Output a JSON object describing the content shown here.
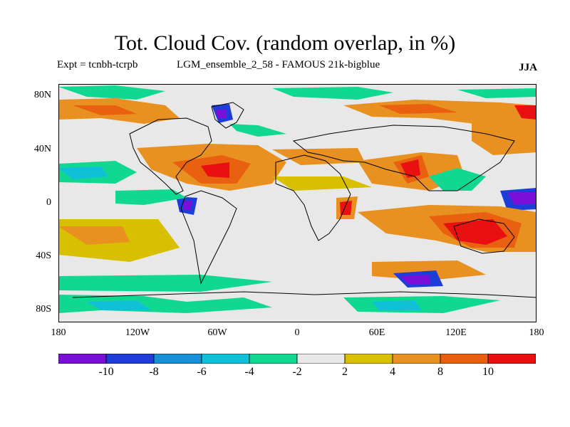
{
  "header": {
    "title": "Tot. Cloud Cov. (random overlap, in %)",
    "expt": "Expt = tcnbh-tcrpb",
    "run": "LGM_ensemble_2_58 - FAMOUS 21k-bigblue",
    "season": "JJA"
  },
  "map": {
    "lat_ticks": [
      "80N",
      "40N",
      "0",
      "40S",
      "80S"
    ],
    "lon_ticks": [
      "180",
      "120W",
      "60W",
      "0",
      "60E",
      "120E",
      "180"
    ]
  },
  "colorbar": {
    "labels": [
      "-10",
      "-8",
      "-6",
      "-4",
      "-2",
      "2",
      "4",
      "8",
      "10"
    ],
    "colors": [
      "#7a10d8",
      "#1e3cd8",
      "#1890d8",
      "#10c0d8",
      "#10d890",
      "#e8e8e8",
      "#d8c000",
      "#e89020",
      "#e86010",
      "#e81010"
    ]
  }
}
